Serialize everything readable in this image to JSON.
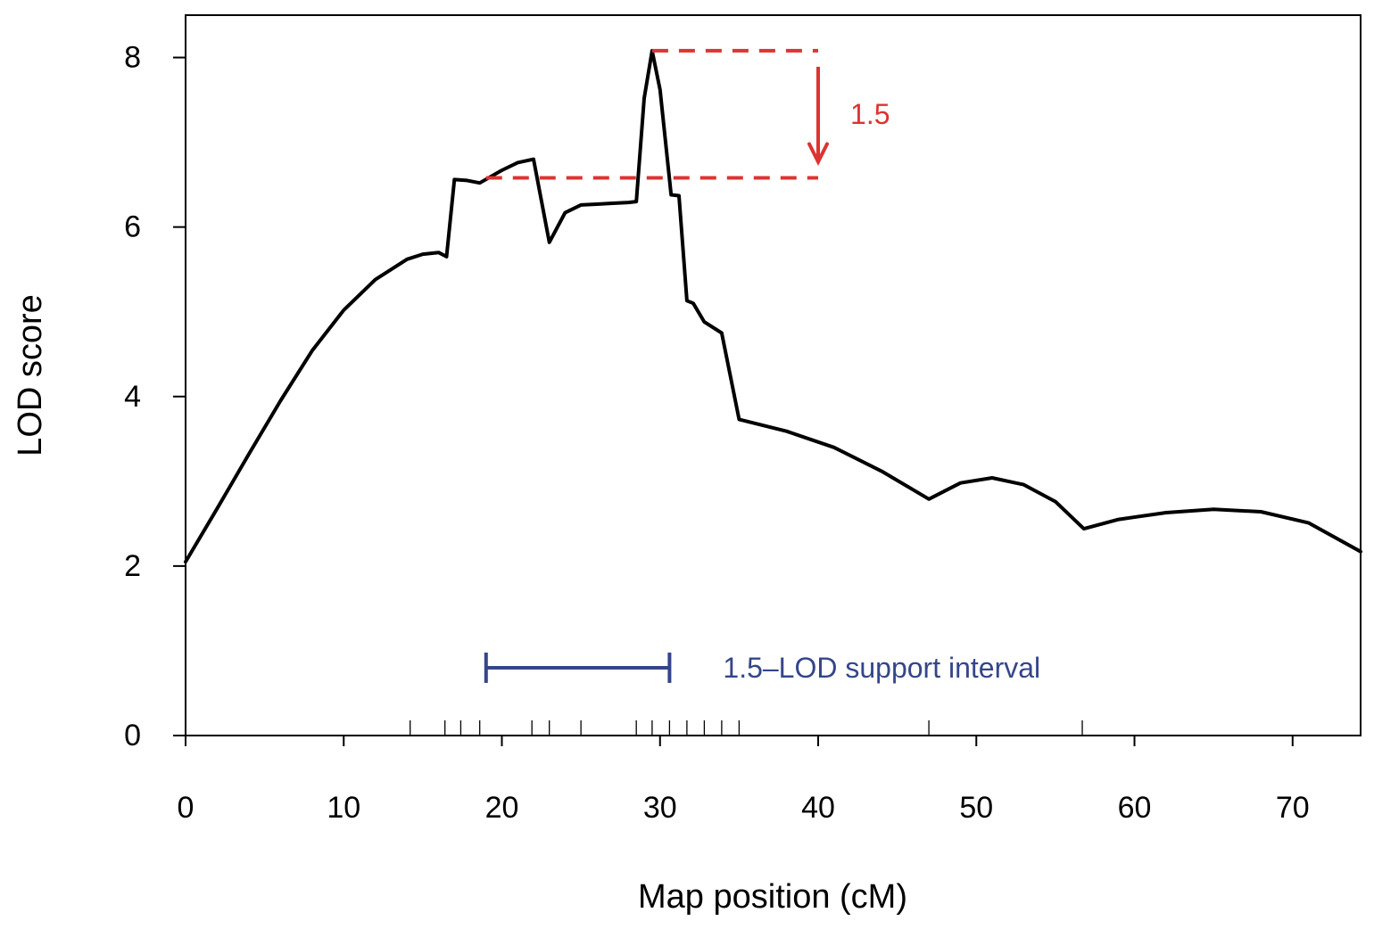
{
  "chart_data": {
    "type": "line",
    "title": "",
    "xlabel": "Map position (cM)",
    "ylabel": "LOD score",
    "xlim": [
      0,
      74.3
    ],
    "ylim": [
      0,
      8.5
    ],
    "x_ticks": [
      0,
      10,
      20,
      30,
      40,
      50,
      60,
      70
    ],
    "y_ticks": [
      0,
      2,
      4,
      6,
      8
    ],
    "grid": false,
    "legend": "none",
    "series": [
      {
        "color": "#000000",
        "x": [
          0,
          2,
          4,
          6,
          8,
          10,
          12,
          14,
          15,
          16,
          16.5,
          17,
          17.8,
          18.6,
          20,
          21,
          22,
          23,
          24,
          25,
          26,
          27,
          28,
          28.5,
          29,
          29.5,
          30,
          30.7,
          31.2,
          31.7,
          32.1,
          32.8,
          33.9,
          35,
          38,
          41,
          44,
          47,
          49,
          51,
          53,
          55,
          56.8,
          59,
          62,
          65,
          68,
          71,
          74.3
        ],
        "y": [
          2.05,
          2.68,
          3.32,
          3.95,
          4.54,
          5.02,
          5.38,
          5.62,
          5.68,
          5.7,
          5.65,
          6.56,
          6.55,
          6.52,
          6.67,
          6.76,
          6.8,
          5.82,
          6.17,
          6.26,
          6.27,
          6.28,
          6.29,
          6.3,
          7.52,
          8.08,
          7.62,
          6.38,
          6.37,
          5.13,
          5.1,
          4.88,
          4.75,
          3.73,
          3.59,
          3.4,
          3.12,
          2.79,
          2.98,
          3.04,
          2.96,
          2.76,
          2.44,
          2.55,
          2.63,
          2.67,
          2.64,
          2.51,
          2.17
        ]
      }
    ],
    "markers_x": [
      14.2,
      16.4,
      17.4,
      18.6,
      21.9,
      23.0,
      25.0,
      28.5,
      29.5,
      30.6,
      31.7,
      32.8,
      33.9,
      35.0,
      47.0,
      56.7
    ],
    "peak": {
      "x": 29.5,
      "y": 8.08
    },
    "threshold_y": 6.58,
    "drop_label": "1.5",
    "support_interval": {
      "from": 19.0,
      "to": 30.6,
      "y": 0.8,
      "label": "1.5–LOD support interval"
    },
    "colors": {
      "curve": "#000000",
      "drop": "#dd3333",
      "interval": "#34468a"
    }
  }
}
